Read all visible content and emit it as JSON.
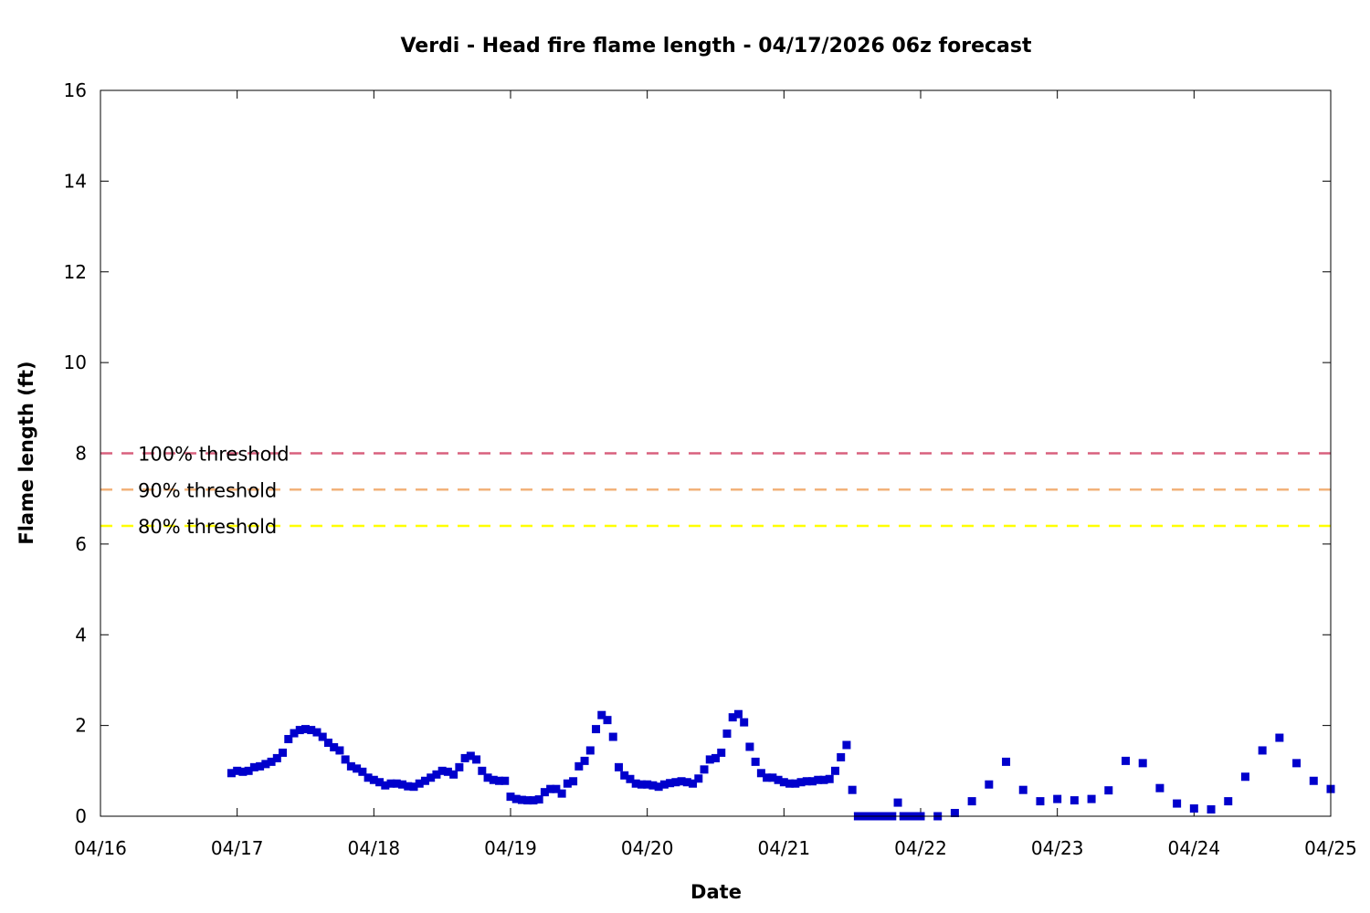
{
  "chart_data": {
    "type": "scatter",
    "title": "Verdi - Head fire flame length - 04/17/2026 06z forecast",
    "xlabel": "Date",
    "ylabel": "Flame length (ft)",
    "x_unit": "day",
    "xlim": [
      "04/16",
      "04/25"
    ],
    "ylim": [
      0,
      16
    ],
    "x_tick_labels": [
      "04/16",
      "04/17",
      "04/18",
      "04/19",
      "04/20",
      "04/21",
      "04/22",
      "04/23",
      "04/24",
      "04/25"
    ],
    "y_tick_labels": [
      "0",
      "2",
      "4",
      "6",
      "8",
      "10",
      "12",
      "14",
      "16"
    ],
    "grid": false,
    "marker_color": "#0000cc",
    "thresholds": [
      {
        "label": "100% threshold",
        "value": 8.0,
        "color": "#d9607e"
      },
      {
        "label": "90% threshold",
        "value": 7.2,
        "color": "#f2b27a"
      },
      {
        "label": "80% threshold",
        "value": 6.4,
        "color": "#ffff00"
      }
    ],
    "series": [
      {
        "points": [
          [
            "04/16 23:00",
            0.95
          ],
          [
            "04/17 00:00",
            1.0
          ],
          [
            "04/17 01:00",
            0.98
          ],
          [
            "04/17 02:00",
            1.0
          ],
          [
            "04/17 03:00",
            1.08
          ],
          [
            "04/17 04:00",
            1.1
          ],
          [
            "04/17 05:00",
            1.15
          ],
          [
            "04/17 06:00",
            1.2
          ],
          [
            "04/17 07:00",
            1.28
          ],
          [
            "04/17 08:00",
            1.4
          ],
          [
            "04/17 09:00",
            1.7
          ],
          [
            "04/17 10:00",
            1.83
          ],
          [
            "04/17 11:00",
            1.9
          ],
          [
            "04/17 12:00",
            1.92
          ],
          [
            "04/17 13:00",
            1.9
          ],
          [
            "04/17 14:00",
            1.85
          ],
          [
            "04/17 15:00",
            1.75
          ],
          [
            "04/17 16:00",
            1.62
          ],
          [
            "04/17 17:00",
            1.52
          ],
          [
            "04/17 18:00",
            1.45
          ],
          [
            "04/17 19:00",
            1.25
          ],
          [
            "04/17 20:00",
            1.1
          ],
          [
            "04/17 21:00",
            1.05
          ],
          [
            "04/17 22:00",
            0.98
          ],
          [
            "04/17 23:00",
            0.85
          ],
          [
            "04/18 00:00",
            0.8
          ],
          [
            "04/18 01:00",
            0.75
          ],
          [
            "04/18 02:00",
            0.68
          ],
          [
            "04/18 03:00",
            0.72
          ],
          [
            "04/18 04:00",
            0.72
          ],
          [
            "04/18 05:00",
            0.7
          ],
          [
            "04/18 06:00",
            0.66
          ],
          [
            "04/18 07:00",
            0.65
          ],
          [
            "04/18 08:00",
            0.72
          ],
          [
            "04/18 09:00",
            0.78
          ],
          [
            "04/18 10:00",
            0.85
          ],
          [
            "04/18 11:00",
            0.92
          ],
          [
            "04/18 12:00",
            1.0
          ],
          [
            "04/18 13:00",
            0.98
          ],
          [
            "04/18 14:00",
            0.92
          ],
          [
            "04/18 15:00",
            1.08
          ],
          [
            "04/18 16:00",
            1.28
          ],
          [
            "04/18 17:00",
            1.33
          ],
          [
            "04/18 18:00",
            1.25
          ],
          [
            "04/18 19:00",
            1.0
          ],
          [
            "04/18 20:00",
            0.85
          ],
          [
            "04/18 21:00",
            0.8
          ],
          [
            "04/18 22:00",
            0.78
          ],
          [
            "04/18 23:00",
            0.78
          ],
          [
            "04/19 00:00",
            0.43
          ],
          [
            "04/19 01:00",
            0.38
          ],
          [
            "04/19 02:00",
            0.36
          ],
          [
            "04/19 03:00",
            0.35
          ],
          [
            "04/19 04:00",
            0.35
          ],
          [
            "04/19 05:00",
            0.37
          ],
          [
            "04/19 06:00",
            0.53
          ],
          [
            "04/19 07:00",
            0.6
          ],
          [
            "04/19 08:00",
            0.6
          ],
          [
            "04/19 09:00",
            0.5
          ],
          [
            "04/19 10:00",
            0.72
          ],
          [
            "04/19 11:00",
            0.77
          ],
          [
            "04/19 12:00",
            1.1
          ],
          [
            "04/19 13:00",
            1.22
          ],
          [
            "04/19 14:00",
            1.45
          ],
          [
            "04/19 15:00",
            1.92
          ],
          [
            "04/19 16:00",
            2.23
          ],
          [
            "04/19 17:00",
            2.12
          ],
          [
            "04/19 18:00",
            1.75
          ],
          [
            "04/19 19:00",
            1.08
          ],
          [
            "04/19 20:00",
            0.9
          ],
          [
            "04/19 21:00",
            0.82
          ],
          [
            "04/19 22:00",
            0.72
          ],
          [
            "04/19 23:00",
            0.7
          ],
          [
            "04/20 00:00",
            0.7
          ],
          [
            "04/20 01:00",
            0.68
          ],
          [
            "04/20 02:00",
            0.65
          ],
          [
            "04/20 03:00",
            0.7
          ],
          [
            "04/20 04:00",
            0.73
          ],
          [
            "04/20 05:00",
            0.75
          ],
          [
            "04/20 06:00",
            0.77
          ],
          [
            "04/20 07:00",
            0.75
          ],
          [
            "04/20 08:00",
            0.72
          ],
          [
            "04/20 09:00",
            0.83
          ],
          [
            "04/20 10:00",
            1.03
          ],
          [
            "04/20 11:00",
            1.25
          ],
          [
            "04/20 12:00",
            1.28
          ],
          [
            "04/20 13:00",
            1.4
          ],
          [
            "04/20 14:00",
            1.82
          ],
          [
            "04/20 15:00",
            2.18
          ],
          [
            "04/20 16:00",
            2.25
          ],
          [
            "04/20 17:00",
            2.07
          ],
          [
            "04/20 18:00",
            1.53
          ],
          [
            "04/20 19:00",
            1.2
          ],
          [
            "04/20 20:00",
            0.95
          ],
          [
            "04/20 21:00",
            0.85
          ],
          [
            "04/20 22:00",
            0.85
          ],
          [
            "04/20 23:00",
            0.8
          ],
          [
            "04/21 00:00",
            0.75
          ],
          [
            "04/21 01:00",
            0.72
          ],
          [
            "04/21 02:00",
            0.72
          ],
          [
            "04/21 03:00",
            0.75
          ],
          [
            "04/21 04:00",
            0.77
          ],
          [
            "04/21 05:00",
            0.77
          ],
          [
            "04/21 06:00",
            0.8
          ],
          [
            "04/21 07:00",
            0.8
          ],
          [
            "04/21 08:00",
            0.82
          ],
          [
            "04/21 09:00",
            1.0
          ],
          [
            "04/21 10:00",
            1.3
          ],
          [
            "04/21 11:00",
            1.57
          ],
          [
            "04/21 12:00",
            0.58
          ],
          [
            "04/21 13:00",
            0.0
          ],
          [
            "04/21 14:00",
            0.0
          ],
          [
            "04/21 15:00",
            0.0
          ],
          [
            "04/21 16:00",
            0.0
          ],
          [
            "04/21 17:00",
            0.0
          ],
          [
            "04/21 18:00",
            0.0
          ],
          [
            "04/21 19:00",
            0.0
          ],
          [
            "04/21 20:00",
            0.3
          ],
          [
            "04/21 21:00",
            0.0
          ],
          [
            "04/21 22:00",
            0.0
          ],
          [
            "04/21 23:00",
            0.0
          ],
          [
            "04/22 00:00",
            0.0
          ],
          [
            "04/22 03:00",
            0.0
          ],
          [
            "04/22 06:00",
            0.07
          ],
          [
            "04/22 09:00",
            0.33
          ],
          [
            "04/22 12:00",
            0.7
          ],
          [
            "04/22 15:00",
            1.2
          ],
          [
            "04/22 18:00",
            0.58
          ],
          [
            "04/22 21:00",
            0.33
          ],
          [
            "04/23 00:00",
            0.38
          ],
          [
            "04/23 03:00",
            0.35
          ],
          [
            "04/23 06:00",
            0.38
          ],
          [
            "04/23 09:00",
            0.57
          ],
          [
            "04/23 12:00",
            1.22
          ],
          [
            "04/23 15:00",
            1.17
          ],
          [
            "04/23 18:00",
            0.62
          ],
          [
            "04/23 21:00",
            0.28
          ],
          [
            "04/24 00:00",
            0.17
          ],
          [
            "04/24 03:00",
            0.15
          ],
          [
            "04/24 06:00",
            0.33
          ],
          [
            "04/24 09:00",
            0.87
          ],
          [
            "04/24 12:00",
            1.45
          ],
          [
            "04/24 15:00",
            1.73
          ],
          [
            "04/24 18:00",
            1.17
          ],
          [
            "04/24 21:00",
            0.78
          ],
          [
            "04/25 00:00",
            0.6
          ]
        ]
      }
    ]
  }
}
